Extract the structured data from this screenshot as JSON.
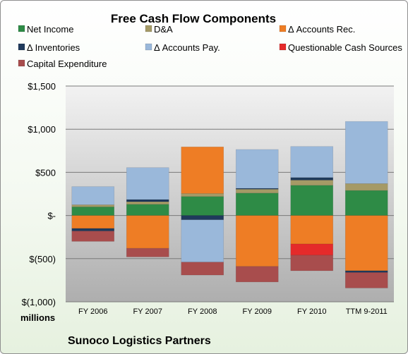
{
  "chart_data": {
    "type": "bar",
    "stacked": true,
    "title": "Free Cash Flow Components",
    "units_label": "millions",
    "footer": "Sunoco Logistics Partners",
    "categories": [
      "FY 2006",
      "FY 2007",
      "FY 2008",
      "FY 2009",
      "FY 2010",
      "TTM 9-2011"
    ],
    "ylim": [
      -1000,
      1500
    ],
    "y_ticks": [
      1500,
      1000,
      500,
      0,
      -500,
      -1000
    ],
    "y_tick_labels": [
      "$1,500",
      "$1,000",
      "$500",
      "$-",
      "$(500)",
      "$(1,000)"
    ],
    "grid": true,
    "legend_position": "top",
    "series": [
      {
        "name": "Net Income",
        "color": "#2e8b46",
        "values": [
          100,
          130,
          220,
          260,
          350,
          290
        ]
      },
      {
        "name": "D&A",
        "color": "#a59a66",
        "values": [
          25,
          30,
          35,
          45,
          60,
          80
        ]
      },
      {
        "name": "Δ Accounts Rec.",
        "color": "#ee7d25",
        "values": [
          -150,
          -380,
          540,
          -590,
          -330,
          -640
        ]
      },
      {
        "name": "Δ Inventories",
        "color": "#1f3a5c",
        "values": [
          -30,
          25,
          -50,
          10,
          30,
          -20
        ]
      },
      {
        "name": "Δ Accounts Pay.",
        "color": "#9ab8da",
        "values": [
          210,
          370,
          -490,
          450,
          360,
          720
        ]
      },
      {
        "name": "Questionable Cash Sources",
        "color": "#e52a2a",
        "values": [
          0,
          0,
          0,
          0,
          -130,
          0
        ]
      },
      {
        "name": "Capital Expenditure",
        "color": "#a84d4d",
        "values": [
          -120,
          -100,
          -150,
          -180,
          -180,
          -180
        ]
      }
    ]
  }
}
